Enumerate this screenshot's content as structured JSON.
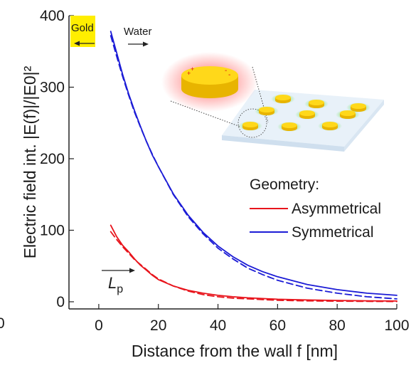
{
  "chart_data": {
    "type": "line",
    "xlabel": "Distance from the wall f [nm]",
    "ylabel": "Electric field int. |E(f)|/|E0|²",
    "xlim": [
      -10,
      100
    ],
    "ylim": [
      -10,
      400
    ],
    "x_ticks": [
      0,
      20,
      40,
      60,
      80,
      100
    ],
    "x_tick_labels": [
      "0",
      "20",
      "40",
      "60",
      "80",
      "100"
    ],
    "y_ticks": [
      0,
      100,
      200,
      300,
      400
    ],
    "y_tick_labels": [
      "0",
      "100",
      "200",
      "300",
      "400"
    ],
    "stray_left_label": "0",
    "legend": {
      "title": "Geometry:",
      "placement": "right",
      "entries": [
        "Asymmetrical",
        "Symmetrical"
      ]
    },
    "annotations": {
      "gold": "Gold",
      "water": "Water",
      "lp_main": "L",
      "lp_sub": "p"
    },
    "series": [
      {
        "name": "Symmetrical",
        "color": "#1c1cd6",
        "style": "solid",
        "x": [
          4,
          6,
          8,
          10,
          12,
          14,
          16,
          18,
          20,
          25,
          30,
          35,
          40,
          45,
          50,
          55,
          60,
          70,
          80,
          90,
          100
        ],
        "y": [
          378,
          348,
          318,
          291,
          267,
          245,
          224,
          205,
          189,
          151,
          121,
          97,
          78,
          63,
          51,
          42,
          35,
          24,
          17,
          12,
          9
        ]
      },
      {
        "name": "Symmetrical fit",
        "color": "#1c1cd6",
        "style": "dashed",
        "x": [
          4,
          6,
          8,
          10,
          12,
          14,
          16,
          18,
          20,
          25,
          30,
          35,
          40,
          45,
          50,
          55,
          60,
          70,
          80,
          90,
          100
        ],
        "y": [
          372,
          343,
          315,
          289,
          265,
          244,
          224,
          206,
          189,
          150,
          119,
          95,
          75,
          60,
          47,
          38,
          30,
          19,
          12,
          7,
          4
        ]
      },
      {
        "name": "Asymmetrical",
        "color": "#e8141c",
        "style": "solid",
        "x": [
          4,
          6,
          8,
          10,
          12,
          14,
          16,
          18,
          20,
          25,
          30,
          35,
          40,
          45,
          50,
          60,
          70,
          80,
          90,
          100
        ],
        "y": [
          107,
          91,
          79,
          70,
          60,
          51,
          44,
          37,
          31,
          22,
          16,
          12,
          9,
          7,
          5.5,
          3.5,
          2.5,
          1.8,
          1.3,
          1
        ]
      },
      {
        "name": "Asymmetrical fit",
        "color": "#e8141c",
        "style": "dashed",
        "x": [
          4,
          6,
          8,
          10,
          12,
          14,
          16,
          18,
          20,
          25,
          30,
          35,
          40,
          45,
          50,
          60,
          70,
          80,
          90,
          100
        ],
        "y": [
          98,
          87,
          77,
          68,
          59,
          52,
          45,
          38,
          32,
          22,
          15,
          10,
          7,
          5,
          4,
          2,
          1.2,
          0.8,
          0.5,
          0.3
        ]
      }
    ]
  }
}
